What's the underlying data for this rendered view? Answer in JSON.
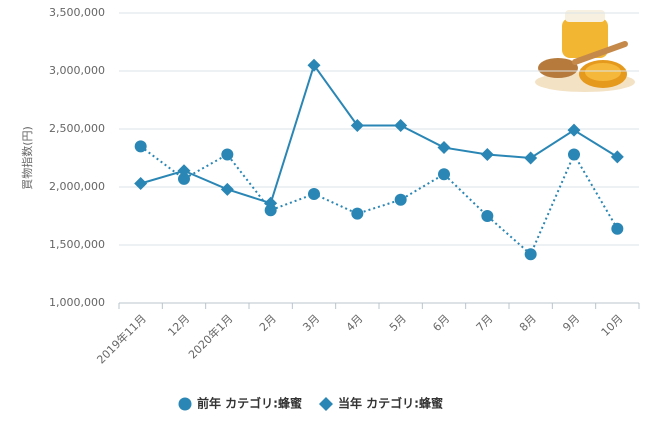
{
  "chart_data": {
    "type": "line",
    "y_label": "買物指数(円)",
    "categories": [
      "2019年11月",
      "12月",
      "2020年1月",
      "2月",
      "3月",
      "4月",
      "5月",
      "6月",
      "7月",
      "8月",
      "9月",
      "10月"
    ],
    "series": [
      {
        "name": "前年 カテゴリ:蜂蜜",
        "color": "#2a86b4",
        "marker": "circle",
        "line_style": "dotted",
        "values": [
          2350000,
          2070000,
          2280000,
          1800000,
          1940000,
          1770000,
          1890000,
          2110000,
          1750000,
          1420000,
          2280000,
          1640000
        ]
      },
      {
        "name": "当年 カテゴリ:蜂蜜",
        "color": "#2a86b4",
        "marker": "diamond",
        "line_style": "solid",
        "values": [
          2030000,
          2140000,
          1980000,
          1860000,
          3050000,
          2530000,
          2530000,
          2340000,
          2280000,
          2250000,
          2490000,
          2260000
        ]
      }
    ],
    "ylim": [
      1000000,
      3500000
    ],
    "yticks": [
      {
        "value": 1000000,
        "label": "1,000,000"
      },
      {
        "value": 1500000,
        "label": "1,500,000"
      },
      {
        "value": 2000000,
        "label": "2,000,000"
      },
      {
        "value": 2500000,
        "label": "2,500,000"
      },
      {
        "value": 3000000,
        "label": "3,000,000"
      },
      {
        "value": 3500000,
        "label": "3,500,000"
      }
    ],
    "grid": true,
    "legend": "bottom"
  }
}
